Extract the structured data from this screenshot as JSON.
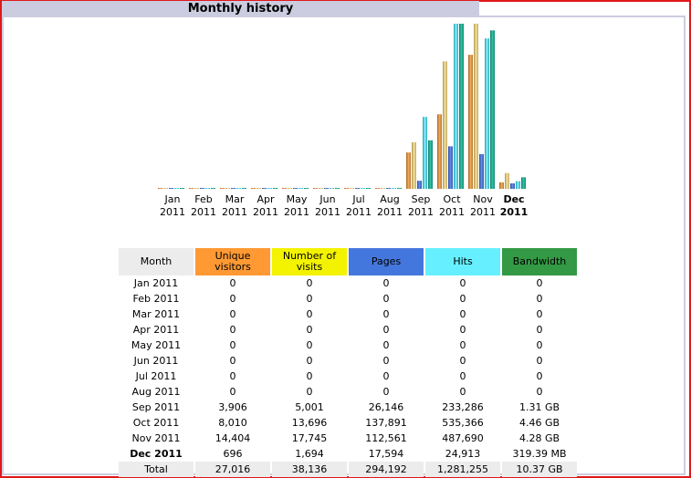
{
  "title": "Monthly history",
  "colors": {
    "unique_visitors": "#ff9933",
    "visits": "#f3f300",
    "pages": "#4477dd",
    "hits": "#66f0ff",
    "bandwidth": "#339944",
    "frame": "#e01818",
    "title_bg": "#cccce0"
  },
  "table": {
    "headers": {
      "month": "Month",
      "unique_visitors": [
        "Unique",
        "visitors"
      ],
      "visits": [
        "Number of",
        "visits"
      ],
      "pages": "Pages",
      "hits": "Hits",
      "bandwidth": "Bandwidth"
    },
    "rows": [
      [
        "Jan 2011",
        "0",
        "0",
        "0",
        "0",
        "0"
      ],
      [
        "Feb 2011",
        "0",
        "0",
        "0",
        "0",
        "0"
      ],
      [
        "Mar 2011",
        "0",
        "0",
        "0",
        "0",
        "0"
      ],
      [
        "Apr 2011",
        "0",
        "0",
        "0",
        "0",
        "0"
      ],
      [
        "May 2011",
        "0",
        "0",
        "0",
        "0",
        "0"
      ],
      [
        "Jun 2011",
        "0",
        "0",
        "0",
        "0",
        "0"
      ],
      [
        "Jul 2011",
        "0",
        "0",
        "0",
        "0",
        "0"
      ],
      [
        "Aug 2011",
        "0",
        "0",
        "0",
        "0",
        "0"
      ],
      [
        "Sep 2011",
        "3,906",
        "5,001",
        "26,146",
        "233,286",
        "1.31 GB"
      ],
      [
        "Oct 2011",
        "8,010",
        "13,696",
        "137,891",
        "535,366",
        "4.46 GB"
      ],
      [
        "Nov 2011",
        "14,404",
        "17,745",
        "112,561",
        "487,690",
        "4.28 GB"
      ],
      [
        "Dec 2011",
        "696",
        "1,694",
        "17,594",
        "24,913",
        "319.39 MB"
      ]
    ],
    "current_row_index": 11,
    "total": [
      "Total",
      "27,016",
      "38,136",
      "294,192",
      "1,281,255",
      "10.37 GB"
    ]
  },
  "chart_data": {
    "type": "bar",
    "categories": [
      [
        "Jan",
        "2011"
      ],
      [
        "Feb",
        "2011"
      ],
      [
        "Mar",
        "2011"
      ],
      [
        "Apr",
        "2011"
      ],
      [
        "May",
        "2011"
      ],
      [
        "Jun",
        "2011"
      ],
      [
        "Jul",
        "2011"
      ],
      [
        "Aug",
        "2011"
      ],
      [
        "Sep",
        "2011"
      ],
      [
        "Oct",
        "2011"
      ],
      [
        "Nov",
        "2011"
      ],
      [
        "Dec",
        "2011"
      ]
    ],
    "highlight_category": 11,
    "series": [
      {
        "key": "unique_visitors",
        "values": [
          0,
          0,
          0,
          0,
          0,
          0,
          0,
          0,
          3906,
          8010,
          14404,
          696
        ]
      },
      {
        "key": "visits",
        "values": [
          0,
          0,
          0,
          0,
          0,
          0,
          0,
          0,
          5001,
          13696,
          17745,
          1694
        ]
      },
      {
        "key": "pages",
        "values": [
          0,
          0,
          0,
          0,
          0,
          0,
          0,
          0,
          26146,
          137891,
          112561,
          17594
        ]
      },
      {
        "key": "hits",
        "values": [
          0,
          0,
          0,
          0,
          0,
          0,
          0,
          0,
          233286,
          535366,
          487690,
          24913
        ]
      },
      {
        "key": "bandwidth",
        "values_gb": [
          0,
          0,
          0,
          0,
          0,
          0,
          0,
          0,
          1.31,
          4.46,
          4.28,
          0.312
        ]
      }
    ],
    "scale_groups": {
      "visitors_visits": [
        "unique_visitors",
        "visits"
      ],
      "pages_hits": [
        "pages",
        "hits"
      ],
      "bandwidth": [
        "bandwidth"
      ]
    },
    "grid": false,
    "legend": "none"
  }
}
